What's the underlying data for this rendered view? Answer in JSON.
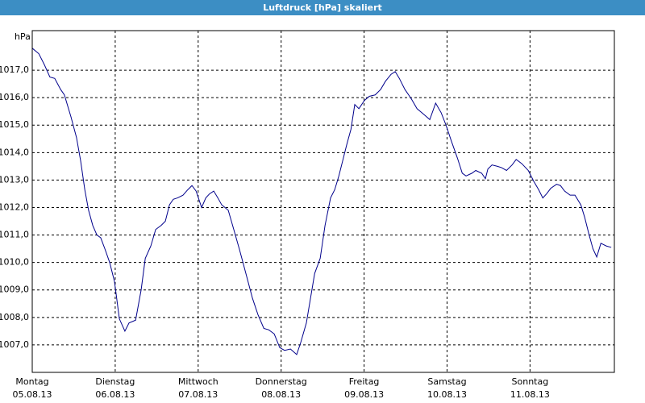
{
  "chart_data": {
    "type": "line",
    "title": "Luftdruck [hPa] skaliert",
    "ylabel": "hPa",
    "x": [
      0,
      1.9,
      3.5,
      5.1,
      6.5,
      8.2,
      9.3,
      11.2,
      12.8,
      14,
      15.2,
      16.3,
      17.5,
      18.7,
      19.8,
      21,
      22.4,
      23.8,
      25.2,
      26.8,
      28,
      29.9,
      31.5,
      32.7,
      34.3,
      35.7,
      37.3,
      38.5,
      39.7,
      40.8,
      42,
      43.6,
      45,
      46.2,
      47.4,
      49,
      50.2,
      51.3,
      52.5,
      53.7,
      54.8,
      56.7,
      58.3,
      60,
      61.8,
      63.7,
      65.3,
      67,
      68.4,
      70,
      71.6,
      73,
      74.7,
      76.5,
      77.7,
      79.3,
      80.5,
      81.7,
      83.3,
      84.7,
      86.3,
      87.5,
      88.7,
      89.8,
      91,
      92.2,
      93.3,
      94.5,
      96.1,
      97.5,
      99.2,
      100.8,
      102.2,
      103.8,
      105,
      106.2,
      107.8,
      109.7,
      111.3,
      113.2,
      115,
      116.7,
      118.3,
      119.7,
      121.3,
      123,
      124.4,
      125.5,
      127.2,
      128.3,
      130,
      131.1,
      131.8,
      133,
      134.6,
      135.8,
      137.2,
      138.8,
      140,
      141.6,
      143.5,
      145.1,
      146.5,
      147.7,
      148.8,
      150,
      151.7,
      152.8,
      154,
      155.6,
      157,
      158.7,
      159.8,
      161,
      162.2,
      163.3,
      164.5,
      166.1,
      167.5
    ],
    "series": [
      {
        "color": "#00008b",
        "values": [
          1017.8,
          1017.6,
          1017.2,
          1016.75,
          1016.7,
          1016.3,
          1016.1,
          1015.3,
          1014.55,
          1013.7,
          1012.65,
          1011.9,
          1011.35,
          1011.0,
          1010.9,
          1010.5,
          1010.0,
          1009.3,
          1007.95,
          1007.5,
          1007.8,
          1007.9,
          1009.0,
          1010.15,
          1010.6,
          1011.2,
          1011.35,
          1011.5,
          1012.1,
          1012.3,
          1012.35,
          1012.45,
          1012.65,
          1012.8,
          1012.6,
          1012.0,
          1012.35,
          1012.5,
          1012.6,
          1012.35,
          1012.1,
          1011.9,
          1011.2,
          1010.45,
          1009.6,
          1008.7,
          1008.1,
          1007.6,
          1007.55,
          1007.4,
          1006.9,
          1006.8,
          1006.85,
          1006.65,
          1007.1,
          1007.8,
          1008.7,
          1009.6,
          1010.15,
          1011.35,
          1012.35,
          1012.65,
          1013.15,
          1013.7,
          1014.3,
          1014.85,
          1015.75,
          1015.6,
          1015.9,
          1016.05,
          1016.1,
          1016.3,
          1016.6,
          1016.85,
          1016.95,
          1016.7,
          1016.3,
          1015.95,
          1015.6,
          1015.4,
          1015.2,
          1015.8,
          1015.45,
          1015.0,
          1014.4,
          1013.8,
          1013.25,
          1013.15,
          1013.25,
          1013.35,
          1013.25,
          1013.05,
          1013.4,
          1013.55,
          1013.5,
          1013.45,
          1013.35,
          1013.55,
          1013.75,
          1013.6,
          1013.35,
          1012.95,
          1012.65,
          1012.35,
          1012.5,
          1012.7,
          1012.85,
          1012.8,
          1012.6,
          1012.45,
          1012.45,
          1012.1,
          1011.65,
          1011.05,
          1010.5,
          1010.2,
          1010.7,
          1010.6,
          1010.55
        ]
      }
    ],
    "xlim": [
      0,
      168.4
    ],
    "xticks": [
      {
        "value": 0,
        "label": "Montag"
      },
      {
        "value": 24,
        "label": "Dienstag"
      },
      {
        "value": 48,
        "label": "Mittwoch"
      },
      {
        "value": 72,
        "label": "Donnerstag"
      },
      {
        "value": 96,
        "label": "Freitag"
      },
      {
        "value": 120,
        "label": "Samstag"
      },
      {
        "value": 144,
        "label": "Sonntag"
      }
    ],
    "xtick_dates": [
      "05.08.13",
      "06.08.13",
      "07.08.13",
      "08.08.13",
      "09.08.13",
      "10.08.13",
      "11.08.13"
    ],
    "ylim": [
      1006.0,
      1018.44
    ],
    "yticks": [
      {
        "value": 1007,
        "label": "1007,0"
      },
      {
        "value": 1008,
        "label": "1008,0"
      },
      {
        "value": 1009,
        "label": "1009,0"
      },
      {
        "value": 1010,
        "label": "1010,0"
      },
      {
        "value": 1011,
        "label": "1011,0"
      },
      {
        "value": 1012,
        "label": "1012,0"
      },
      {
        "value": 1013,
        "label": "1013,0"
      },
      {
        "value": 1014,
        "label": "1014,0"
      },
      {
        "value": 1015,
        "label": "1015,0"
      },
      {
        "value": 1016,
        "label": "1016,0"
      },
      {
        "value": 1017,
        "label": "1017,0"
      }
    ],
    "grid": true
  }
}
